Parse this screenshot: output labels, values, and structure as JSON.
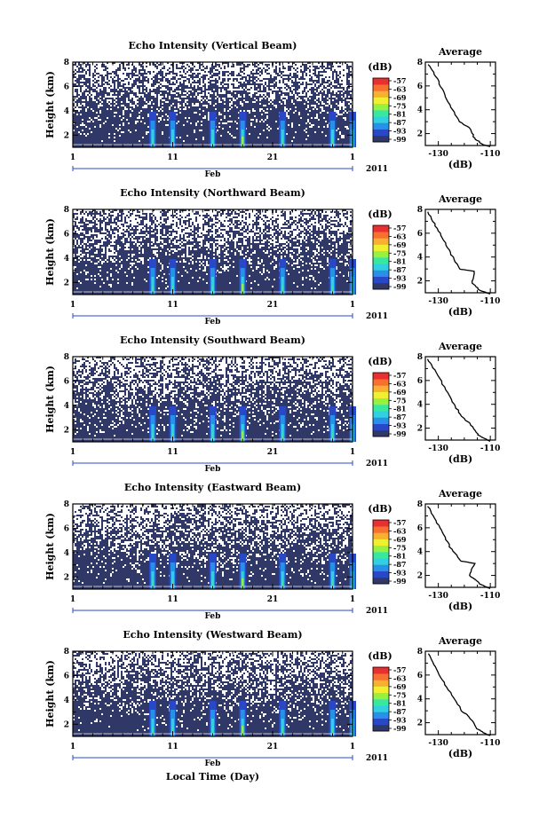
{
  "figure": {
    "xlabel": "Local Time (Day)",
    "month_label": "Feb",
    "year_label": "2011",
    "x_tick_labels": [
      "1",
      "11",
      "21",
      "1"
    ]
  },
  "colorbar": {
    "unit": "(dB)",
    "tick_labels": [
      "-57",
      "-63",
      "-69",
      "-75",
      "-81",
      "-87",
      "-93",
      "-99"
    ],
    "colors": [
      "#303868",
      "#2848c8",
      "#2890e8",
      "#30d0e0",
      "#38e8a0",
      "#98f040",
      "#f0f030",
      "#f8b030",
      "#f87030",
      "#e83030"
    ]
  },
  "chart_data": [
    {
      "type": "heatmap",
      "title": "Echo Intensity (Vertical Beam)",
      "ylabel": "Height (km)",
      "y_tick_labels": [
        "2",
        "4",
        "6",
        "8"
      ],
      "ylim": [
        1,
        8
      ],
      "x_domain_days": [
        1,
        29
      ],
      "color_range": [
        -99,
        -57
      ],
      "intense_column_days": [
        9,
        11,
        15,
        18,
        22,
        27,
        29
      ],
      "profile": {
        "title": "Average",
        "xlabel": "(dB)",
        "x_tick_labels": [
          "-130",
          "-110"
        ],
        "xlim": [
          -135,
          -108
        ],
        "y_tick_labels": [
          "2",
          "4",
          "6",
          "8"
        ],
        "points": [
          [
            -134,
            7.8
          ],
          [
            -131,
            6.8
          ],
          [
            -128,
            5.5
          ],
          [
            -125,
            4.2
          ],
          [
            -122,
            3.0
          ],
          [
            -118,
            2.5
          ],
          [
            -116,
            1.6
          ],
          [
            -113,
            1.1
          ],
          [
            -110,
            0.9
          ]
        ]
      }
    },
    {
      "type": "heatmap",
      "title": "Echo Intensity (Northward Beam)",
      "ylabel": "Height (km)",
      "y_tick_labels": [
        "2",
        "4",
        "6",
        "8"
      ],
      "ylim": [
        1,
        8
      ],
      "x_domain_days": [
        1,
        29
      ],
      "color_range": [
        -99,
        -57
      ],
      "intense_column_days": [
        9,
        11,
        15,
        18,
        22,
        27,
        29
      ],
      "profile": {
        "title": "Average",
        "xlabel": "(dB)",
        "x_tick_labels": [
          "-130",
          "-110"
        ],
        "xlim": [
          -135,
          -108
        ],
        "y_tick_labels": [
          "2",
          "4",
          "6",
          "8"
        ],
        "points": [
          [
            -134,
            7.8
          ],
          [
            -131,
            6.6
          ],
          [
            -128,
            5.4
          ],
          [
            -125,
            4.2
          ],
          [
            -122,
            3.0
          ],
          [
            -116,
            2.8
          ],
          [
            -117,
            1.8
          ],
          [
            -114,
            1.2
          ],
          [
            -110,
            0.9
          ]
        ]
      }
    },
    {
      "type": "heatmap",
      "title": "Echo Intensity (Southward Beam)",
      "ylabel": "Height (km)",
      "y_tick_labels": [
        "2",
        "4",
        "6",
        "8"
      ],
      "ylim": [
        1,
        8
      ],
      "x_domain_days": [
        1,
        29
      ],
      "color_range": [
        -99,
        -57
      ],
      "intense_column_days": [
        9,
        11,
        15,
        18,
        22,
        27,
        29
      ],
      "profile": {
        "title": "Average",
        "xlabel": "(dB)",
        "x_tick_labels": [
          "-130",
          "-110"
        ],
        "xlim": [
          -135,
          -108
        ],
        "y_tick_labels": [
          "2",
          "4",
          "6",
          "8"
        ],
        "points": [
          [
            -134,
            7.8
          ],
          [
            -131,
            6.7
          ],
          [
            -127,
            5.2
          ],
          [
            -124,
            4.0
          ],
          [
            -121,
            3.0
          ],
          [
            -118,
            2.4
          ],
          [
            -115,
            1.5
          ],
          [
            -112,
            1.1
          ],
          [
            -110,
            0.9
          ]
        ]
      }
    },
    {
      "type": "heatmap",
      "title": "Echo Intensity (Eastward Beam)",
      "ylabel": "Height (km)",
      "y_tick_labels": [
        "2",
        "4",
        "6",
        "8"
      ],
      "ylim": [
        1,
        8
      ],
      "x_domain_days": [
        1,
        29
      ],
      "color_range": [
        -99,
        -57
      ],
      "intense_column_days": [
        9,
        11,
        15,
        18,
        22,
        27,
        29
      ],
      "profile": {
        "title": "Average",
        "xlabel": "(dB)",
        "x_tick_labels": [
          "-130",
          "-110"
        ],
        "xlim": [
          -135,
          -108
        ],
        "y_tick_labels": [
          "2",
          "4",
          "6",
          "8"
        ],
        "points": [
          [
            -134,
            7.8
          ],
          [
            -131,
            6.6
          ],
          [
            -128,
            5.4
          ],
          [
            -125,
            4.2
          ],
          [
            -121,
            3.2
          ],
          [
            -116,
            3.0
          ],
          [
            -118,
            2.0
          ],
          [
            -114,
            1.3
          ],
          [
            -110,
            0.9
          ]
        ]
      }
    },
    {
      "type": "heatmap",
      "title": "Echo Intensity (Westward Beam)",
      "ylabel": "Height (km)",
      "y_tick_labels": [
        "2",
        "4",
        "6",
        "8"
      ],
      "ylim": [
        1,
        8
      ],
      "x_domain_days": [
        1,
        29
      ],
      "color_range": [
        -99,
        -57
      ],
      "intense_column_days": [
        9,
        11,
        15,
        18,
        22,
        27,
        29
      ],
      "profile": {
        "title": "Average",
        "xlabel": "(dB)",
        "x_tick_labels": [
          "-130",
          "-110"
        ],
        "xlim": [
          -135,
          -108
        ],
        "y_tick_labels": [
          "2",
          "4",
          "6",
          "8"
        ],
        "points": [
          [
            -134,
            7.8
          ],
          [
            -131,
            6.7
          ],
          [
            -128,
            5.4
          ],
          [
            -124,
            4.1
          ],
          [
            -121,
            3.0
          ],
          [
            -118,
            2.5
          ],
          [
            -115,
            1.5
          ],
          [
            -112,
            1.1
          ],
          [
            -110,
            0.9
          ]
        ]
      }
    }
  ]
}
